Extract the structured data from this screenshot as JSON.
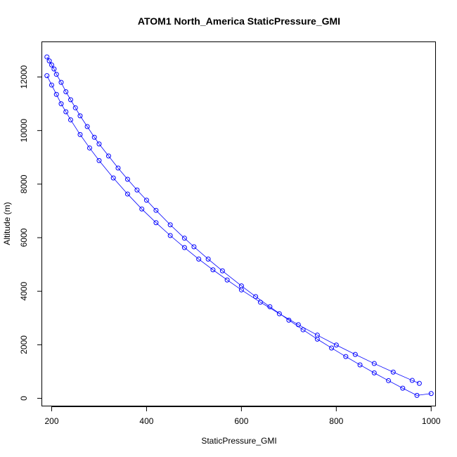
{
  "chart_data": {
    "type": "scatter",
    "title": "ATOM1 North_America StaticPressure_GMI",
    "xlabel": "StaticPressure_GMI",
    "ylabel": "Altitude (m)",
    "xlim": [
      180,
      1010
    ],
    "ylim": [
      -300,
      13300
    ],
    "xticks": [
      200,
      400,
      600,
      800,
      1000
    ],
    "yticks": [
      0,
      2000,
      4000,
      6000,
      8000,
      10000,
      12000
    ],
    "grid": false,
    "legend": "none",
    "marker": "open-circle",
    "color": "#0000ff",
    "series": [
      {
        "values_note_x": "StaticPressure_GMI",
        "x": [
          190,
          195,
          200,
          205,
          210,
          220,
          230,
          240,
          250,
          260,
          275,
          290,
          300,
          320,
          340,
          360,
          380,
          400,
          420,
          450,
          480,
          500,
          530,
          560,
          600,
          630,
          660,
          700,
          730,
          760,
          790,
          820,
          850,
          880,
          910,
          940,
          970,
          1000
        ],
        "y": [
          12750,
          12600,
          12450,
          12300,
          12100,
          11800,
          11450,
          11150,
          10850,
          10550,
          10150,
          9750,
          9500,
          9050,
          8600,
          8180,
          7780,
          7400,
          7020,
          6480,
          5980,
          5660,
          5200,
          4760,
          4200,
          3800,
          3420,
          2920,
          2560,
          2210,
          1880,
          1560,
          1250,
          950,
          660,
          380,
          110,
          180
        ]
      },
      {
        "x": [
          190,
          200,
          210,
          220,
          230,
          240,
          260,
          280,
          300,
          330,
          360,
          390,
          420,
          450,
          480,
          510,
          540,
          570,
          600,
          640,
          680,
          720,
          760,
          800,
          840,
          880,
          920,
          960,
          975
        ],
        "y": [
          12050,
          11700,
          11350,
          11000,
          10700,
          10400,
          9850,
          9350,
          8880,
          8230,
          7630,
          7070,
          6560,
          6080,
          5630,
          5200,
          4800,
          4420,
          4050,
          3590,
          3160,
          2750,
          2360,
          1990,
          1640,
          1300,
          980,
          670,
          560
        ]
      }
    ]
  }
}
